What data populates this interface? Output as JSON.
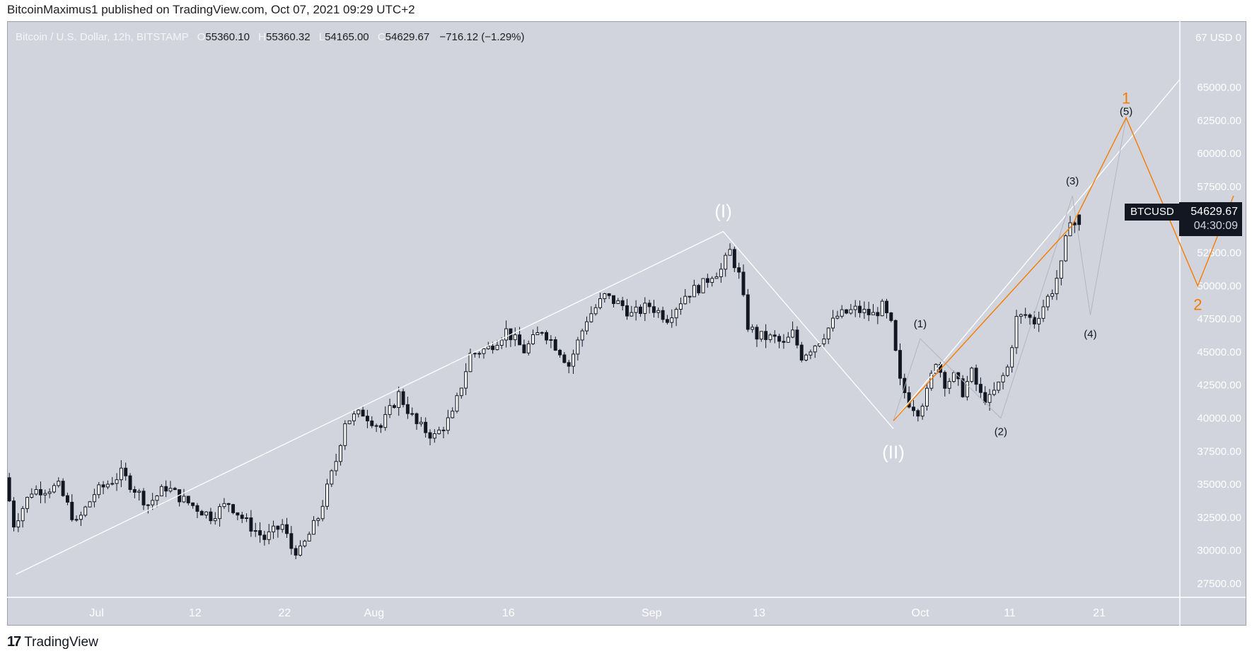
{
  "header": {
    "published_line": "BitcoinMaximus1 published on TradingView.com, Oct 07, 2021 09:29 UTC+2"
  },
  "legend": {
    "symbol": "Bitcoin / U.S. Dollar, 12h, BITSTAMP",
    "open_key": "O",
    "open": "55360.10",
    "high_key": "H",
    "high": "55360.32",
    "low_key": "L",
    "low": "54165.00",
    "close_key": "C",
    "close": "54629.67",
    "change": "−716.12 (−1.29%)"
  },
  "price_tag": {
    "symbol": "BTCUSD",
    "price": "54629.67",
    "countdown": "04:30:09"
  },
  "footer": {
    "brand": "TradingView"
  },
  "colors": {
    "background": "#d1d4dc",
    "up_candle": "#ffffff",
    "down_candle": "#131722",
    "wave_white": "#ffffff",
    "wave_orange": "#f57c00",
    "projection_gray": "#b2b5be"
  },
  "chart_data": {
    "type": "candlestick",
    "title": "Bitcoin / U.S. Dollar, 12h, BITSTAMP",
    "currency": "USD",
    "ylim": [
      26000,
      68000
    ],
    "y_ticks": [
      27500,
      30000,
      32500,
      35000,
      37500,
      40000,
      42500,
      45000,
      47500,
      50000,
      52500,
      55000,
      57500,
      60000,
      62500,
      65000
    ],
    "y_tick_labels": [
      "27500.00",
      "30000.00",
      "32500.00",
      "35000.00",
      "37500.00",
      "40000.00",
      "42500.00",
      "45000.00",
      "47500.00",
      "50000.00",
      "52500.00",
      "55000.00",
      "57500.00",
      "60000.00",
      "62500.00",
      "65000.00"
    ],
    "y_top_label": "67 USD 0",
    "x_range": [
      "2021-06-21",
      "2021-10-30"
    ],
    "x_ticks": [
      {
        "date": "2021-07-01",
        "label": "Jul"
      },
      {
        "date": "2021-07-12",
        "label": "12"
      },
      {
        "date": "2021-07-22",
        "label": "22"
      },
      {
        "date": "2021-08-01",
        "label": "Aug"
      },
      {
        "date": "2021-08-16",
        "label": "16"
      },
      {
        "date": "2021-09-01",
        "label": "Sep"
      },
      {
        "date": "2021-09-13",
        "label": "13"
      },
      {
        "date": "2021-10-01",
        "label": "Oct"
      },
      {
        "date": "2021-10-11",
        "label": "11"
      },
      {
        "date": "2021-10-21",
        "label": "21"
      }
    ],
    "close_anchors": [
      [
        "2021-06-21",
        35500
      ],
      [
        "2021-06-22",
        32000
      ],
      [
        "2021-06-24",
        34500
      ],
      [
        "2021-06-27",
        34800
      ],
      [
        "2021-06-29",
        32000
      ],
      [
        "2021-07-01",
        34300
      ],
      [
        "2021-07-04",
        35800
      ],
      [
        "2021-07-07",
        33500
      ],
      [
        "2021-07-09",
        34800
      ],
      [
        "2021-07-11",
        33800
      ],
      [
        "2021-07-14",
        32600
      ],
      [
        "2021-07-16",
        33600
      ],
      [
        "2021-07-18",
        32100
      ],
      [
        "2021-07-20",
        30900
      ],
      [
        "2021-07-22",
        31900
      ],
      [
        "2021-07-23",
        30200
      ],
      [
        "2021-07-24",
        29900
      ],
      [
        "2021-07-26",
        32500
      ],
      [
        "2021-07-28",
        36800
      ],
      [
        "2021-07-29",
        39800
      ],
      [
        "2021-07-31",
        40400
      ],
      [
        "2021-08-02",
        39300
      ],
      [
        "2021-08-04",
        41800
      ],
      [
        "2021-08-06",
        39500
      ],
      [
        "2021-08-08",
        38600
      ],
      [
        "2021-08-10",
        40200
      ],
      [
        "2021-08-12",
        44800
      ],
      [
        "2021-08-14",
        45300
      ],
      [
        "2021-08-16",
        46600
      ],
      [
        "2021-08-18",
        45100
      ],
      [
        "2021-08-20",
        46700
      ],
      [
        "2021-08-22",
        45100
      ],
      [
        "2021-08-23",
        44000
      ],
      [
        "2021-08-25",
        47500
      ],
      [
        "2021-08-27",
        49200
      ],
      [
        "2021-08-29",
        48500
      ],
      [
        "2021-08-30",
        47800
      ],
      [
        "2021-09-01",
        48500
      ],
      [
        "2021-09-03",
        47600
      ],
      [
        "2021-09-05",
        49300
      ],
      [
        "2021-09-07",
        50100
      ],
      [
        "2021-09-08",
        50900
      ],
      [
        "2021-09-09",
        51200
      ],
      [
        "2021-09-10",
        52600
      ],
      [
        "2021-09-11",
        50800
      ],
      [
        "2021-09-12",
        47000
      ],
      [
        "2021-09-13",
        46200
      ],
      [
        "2021-09-15",
        46000
      ],
      [
        "2021-09-16",
        45500
      ],
      [
        "2021-09-17",
        46400
      ],
      [
        "2021-09-18",
        44700
      ],
      [
        "2021-09-20",
        45900
      ],
      [
        "2021-09-22",
        47700
      ],
      [
        "2021-09-24",
        48200
      ],
      [
        "2021-09-26",
        47800
      ],
      [
        "2021-09-27",
        48400
      ],
      [
        "2021-09-28",
        47000
      ],
      [
        "2021-09-29",
        42700
      ],
      [
        "2021-09-30",
        41200
      ],
      [
        "2021-10-01",
        40600
      ],
      [
        "2021-10-02",
        41900
      ],
      [
        "2021-10-03",
        44400
      ],
      [
        "2021-10-04",
        42700
      ],
      [
        "2021-10-05",
        43100
      ],
      [
        "2021-10-06",
        42000
      ],
      [
        "2021-10-07",
        43400
      ],
      [
        "2021-10-08",
        41700
      ],
      [
        "2021-10-09",
        41400
      ],
      [
        "2021-10-10",
        42500
      ],
      [
        "2021-10-11",
        43800
      ],
      [
        "2021-10-12",
        47500
      ],
      [
        "2021-10-13",
        47800
      ],
      [
        "2021-10-14",
        47300
      ],
      [
        "2021-10-15",
        48500
      ],
      [
        "2021-10-16",
        49700
      ],
      [
        "2021-10-17",
        51500
      ],
      [
        "2021-10-18",
        55200
      ],
      [
        "2021-10-18T12",
        54629.67
      ]
    ],
    "last_candle": {
      "open": 55360.1,
      "high": 55360.32,
      "low": 54165.0,
      "close": 54629.67
    },
    "annotations": {
      "white_wave": [
        {
          "date": "2021-06-22",
          "price": 28200
        },
        {
          "date": "2021-09-09",
          "price": 54100,
          "label": "(I)"
        },
        {
          "date": "2021-09-28",
          "price": 39200,
          "label": "(II)"
        }
      ],
      "white_channel": [
        {
          "date": "2021-09-28",
          "price": 39800
        },
        {
          "date": "2021-10-30",
          "price": 65600
        }
      ],
      "orange_wave": [
        {
          "date": "2021-09-28",
          "price": 39800
        },
        {
          "date": "2021-10-18",
          "price": 54600
        },
        {
          "date": "2021-10-24",
          "price": 62700,
          "label": "1"
        },
        {
          "date": "2021-11-01",
          "price": 50000,
          "label": "2"
        },
        {
          "date": "2021-11-05",
          "price": 56800
        }
      ],
      "gray_subwaves": [
        {
          "date": "2021-09-28",
          "price": 39800
        },
        {
          "date": "2021-10-01",
          "price": 46000,
          "label": "(1)"
        },
        {
          "date": "2021-10-10",
          "price": 40000,
          "label": "(2)"
        },
        {
          "date": "2021-10-18",
          "price": 56800,
          "label": "(3)"
        },
        {
          "date": "2021-10-20",
          "price": 47800,
          "label": "(4)"
        },
        {
          "date": "2021-10-24",
          "price": 62700,
          "label": "(5)"
        }
      ]
    }
  }
}
